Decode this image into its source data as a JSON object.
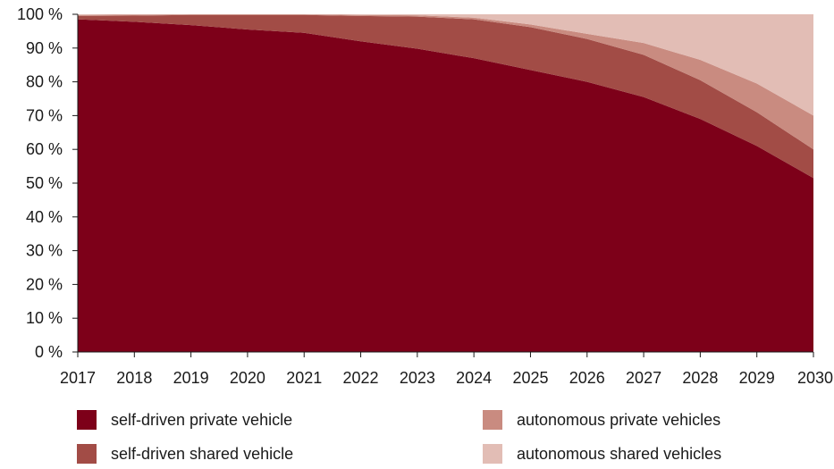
{
  "chart_data": {
    "type": "area",
    "stacked": true,
    "x": [
      "2017",
      "2018",
      "2019",
      "2020",
      "2021",
      "2022",
      "2023",
      "2024",
      "2025",
      "2026",
      "2027",
      "2028",
      "2029",
      "2030"
    ],
    "ylim": [
      0,
      100
    ],
    "y_ticks": [
      "0 %",
      "10 %",
      "20 %",
      "30 %",
      "40 %",
      "50 %",
      "60 %",
      "70 %",
      "80 %",
      "90 %",
      "100 %"
    ],
    "grid": false,
    "legend_position": "bottom",
    "series": [
      {
        "name": "self-driven private vehicle",
        "color": "#7d0019",
        "values": [
          98.5,
          97.8,
          96.8,
          95.5,
          94.5,
          92.0,
          89.8,
          87.0,
          83.5,
          80.0,
          75.5,
          69.0,
          61.0,
          51.5
        ]
      },
      {
        "name": "self-driven shared vehicle",
        "color": "#a24c46",
        "values": [
          1.0,
          1.8,
          3.0,
          4.3,
          5.3,
          7.5,
          9.5,
          11.5,
          12.7,
          12.7,
          12.5,
          11.5,
          10.0,
          8.5
        ]
      },
      {
        "name": "autonomous private vehicles",
        "color": "#c98b80",
        "values": [
          0.3,
          0.3,
          0.2,
          0.2,
          0.2,
          0.3,
          0.4,
          0.5,
          0.8,
          1.5,
          3.5,
          6.0,
          8.5,
          10.0
        ]
      },
      {
        "name": "autonomous shared vehicles",
        "color": "#e2bdb5",
        "values": [
          0.2,
          0.1,
          0.0,
          0.0,
          0.0,
          0.2,
          0.3,
          1.0,
          3.0,
          5.8,
          8.5,
          13.5,
          20.5,
          30.0
        ]
      }
    ]
  }
}
